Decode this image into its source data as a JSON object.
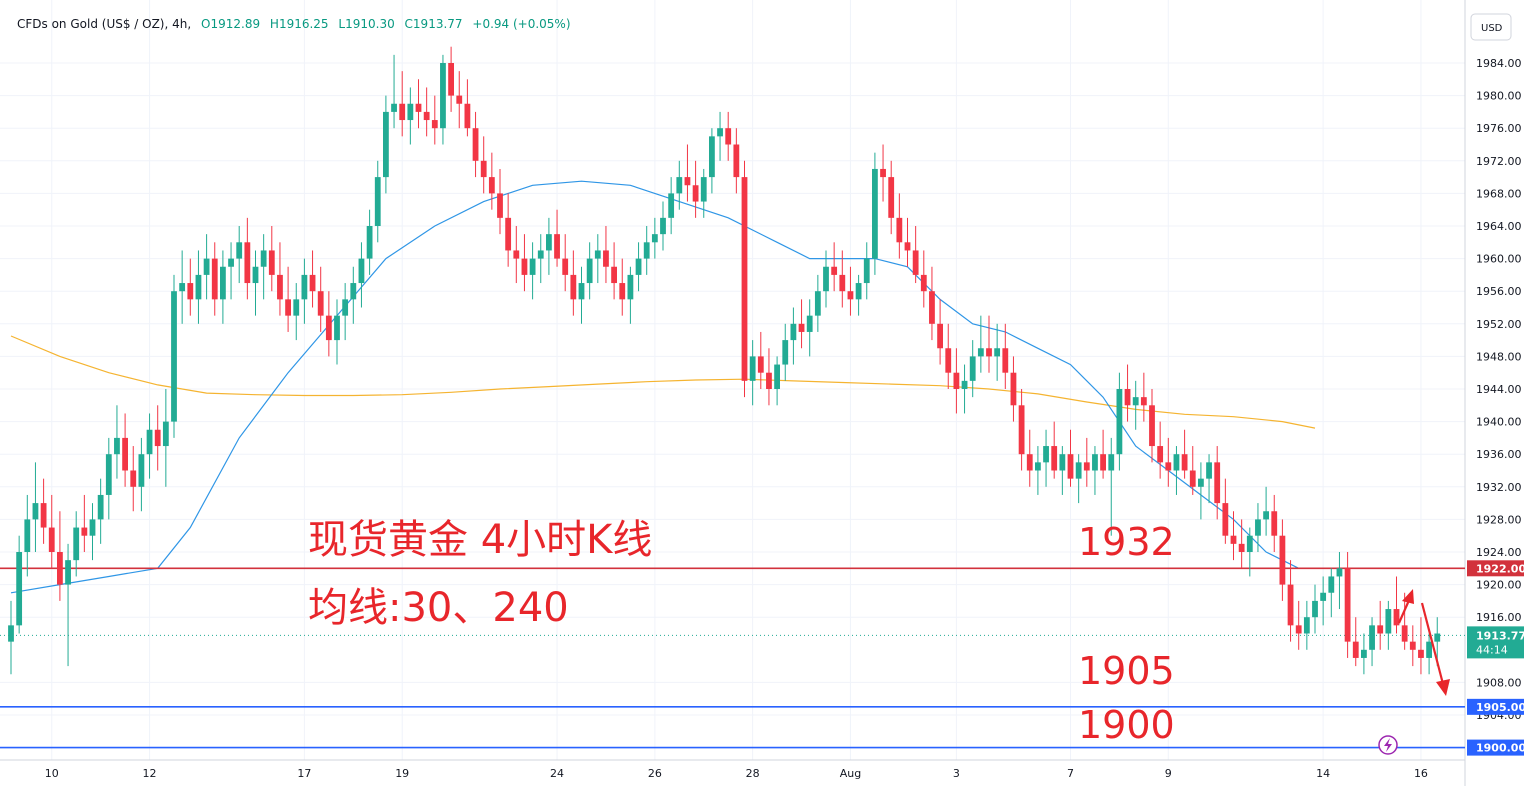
{
  "header": {
    "symbol": "CFDs on Gold (US$ / OZ), 4h,",
    "open": "O1912.89",
    "high": "H1916.25",
    "low": "L1910.30",
    "close": "C1913.77",
    "change": "+0.94 (+0.05%)"
  },
  "currency": "USD",
  "annotations": {
    "title": "现货黄金 4小时K线",
    "ma_note": "均线:30、240",
    "level_1932": "1932",
    "level_1905": "1905",
    "level_1900": "1900"
  },
  "price_tags": {
    "resistance": "1922.00",
    "current": "1913.77",
    "countdown": "44:14",
    "support_1": "1905.00",
    "support_2": "1900.00"
  },
  "colors": {
    "up": "#22ab94",
    "down": "#f23645",
    "ma30": "#2f96e6",
    "ma240": "#f5b431",
    "resistance_line": "#d2323c",
    "support_line": "#2962ff",
    "annotation": "#e8262b"
  },
  "chart_data": {
    "type": "candlestick",
    "timeframe": "4h",
    "ylim": [
      1898,
      1988
    ],
    "y_ticks": [
      "1984.00",
      "1980.00",
      "1976.00",
      "1972.00",
      "1968.00",
      "1964.00",
      "1960.00",
      "1956.00",
      "1952.00",
      "1948.00",
      "1944.00",
      "1940.00",
      "1936.00",
      "1932.00",
      "1928.00",
      "1924.00",
      "1920.00",
      "1916.00",
      "1908.00",
      "1904.00"
    ],
    "x_ticks": [
      {
        "label": "10",
        "index": 5
      },
      {
        "label": "12",
        "index": 17
      },
      {
        "label": "17",
        "index": 36
      },
      {
        "label": "19",
        "index": 48
      },
      {
        "label": "24",
        "index": 67
      },
      {
        "label": "26",
        "index": 79
      },
      {
        "label": "28",
        "index": 91
      },
      {
        "label": "Aug",
        "index": 103
      },
      {
        "label": "3",
        "index": 116
      },
      {
        "label": "7",
        "index": 130
      },
      {
        "label": "9",
        "index": 142
      },
      {
        "label": "14",
        "index": 161
      },
      {
        "label": "16",
        "index": 173
      }
    ],
    "x_count": 175,
    "horizontal_levels": [
      {
        "value": 1922.0,
        "role": "resistance"
      },
      {
        "value": 1905.0,
        "role": "support"
      },
      {
        "value": 1900.0,
        "role": "support"
      }
    ],
    "last_price": 1913.77,
    "candles": [
      [
        1913.0,
        1918.0,
        1909.0,
        1915.0
      ],
      [
        1915.0,
        1926.0,
        1914.0,
        1924.0
      ],
      [
        1924.0,
        1931.0,
        1921.0,
        1928.0
      ],
      [
        1928.0,
        1935.0,
        1924.0,
        1930.0
      ],
      [
        1930.0,
        1933.0,
        1925.0,
        1927.0
      ],
      [
        1927.0,
        1931.0,
        1922.0,
        1924.0
      ],
      [
        1924.0,
        1929.0,
        1918.0,
        1920.0
      ],
      [
        1920.0,
        1925.0,
        1910.0,
        1923.0
      ],
      [
        1923.0,
        1929.0,
        1921.0,
        1927.0
      ],
      [
        1927.0,
        1931.0,
        1924.0,
        1926.0
      ],
      [
        1926.0,
        1930.0,
        1923.0,
        1928.0
      ],
      [
        1928.0,
        1933.0,
        1925.0,
        1931.0
      ],
      [
        1931.0,
        1938.0,
        1928.0,
        1936.0
      ],
      [
        1936.0,
        1942.0,
        1933.0,
        1938.0
      ],
      [
        1938.0,
        1941.0,
        1932.0,
        1934.0
      ],
      [
        1934.0,
        1937.0,
        1929.0,
        1932.0
      ],
      [
        1932.0,
        1938.0,
        1929.0,
        1936.0
      ],
      [
        1936.0,
        1941.0,
        1933.0,
        1939.0
      ],
      [
        1939.0,
        1942.0,
        1934.0,
        1937.0
      ],
      [
        1937.0,
        1944.0,
        1932.0,
        1940.0
      ],
      [
        1940.0,
        1958.0,
        1938.0,
        1956.0
      ],
      [
        1956.0,
        1961.0,
        1952.0,
        1957.0
      ],
      [
        1957.0,
        1960.0,
        1953.0,
        1955.0
      ],
      [
        1955.0,
        1961.0,
        1952.0,
        1958.0
      ],
      [
        1958.0,
        1963.0,
        1955.0,
        1960.0
      ],
      [
        1960.0,
        1962.0,
        1953.0,
        1955.0
      ],
      [
        1955.0,
        1961.0,
        1952.0,
        1959.0
      ],
      [
        1959.0,
        1962.0,
        1955.0,
        1960.0
      ],
      [
        1960.0,
        1964.0,
        1957.0,
        1962.0
      ],
      [
        1962.0,
        1965.0,
        1955.0,
        1957.0
      ],
      [
        1957.0,
        1961.0,
        1953.0,
        1959.0
      ],
      [
        1959.0,
        1963.0,
        1955.0,
        1961.0
      ],
      [
        1961.0,
        1964.0,
        1956.0,
        1958.0
      ],
      [
        1958.0,
        1962.0,
        1953.0,
        1955.0
      ],
      [
        1955.0,
        1959.0,
        1951.0,
        1953.0
      ],
      [
        1953.0,
        1957.0,
        1950.0,
        1955.0
      ],
      [
        1955.0,
        1960.0,
        1952.0,
        1958.0
      ],
      [
        1958.0,
        1961.0,
        1954.0,
        1956.0
      ],
      [
        1956.0,
        1959.0,
        1951.0,
        1953.0
      ],
      [
        1953.0,
        1956.0,
        1948.0,
        1950.0
      ],
      [
        1950.0,
        1955.0,
        1947.0,
        1953.0
      ],
      [
        1953.0,
        1957.0,
        1950.0,
        1955.0
      ],
      [
        1955.0,
        1959.0,
        1952.0,
        1957.0
      ],
      [
        1957.0,
        1962.0,
        1954.0,
        1960.0
      ],
      [
        1960.0,
        1966.0,
        1958.0,
        1964.0
      ],
      [
        1964.0,
        1972.0,
        1962.0,
        1970.0
      ],
      [
        1970.0,
        1980.0,
        1968.0,
        1978.0
      ],
      [
        1978.0,
        1985.0,
        1976.0,
        1979.0
      ],
      [
        1979.0,
        1983.0,
        1975.0,
        1977.0
      ],
      [
        1977.0,
        1981.0,
        1974.0,
        1979.0
      ],
      [
        1979.0,
        1982.0,
        1976.0,
        1978.0
      ],
      [
        1978.0,
        1981.0,
        1975.0,
        1977.0
      ],
      [
        1977.0,
        1980.0,
        1974.0,
        1976.0
      ],
      [
        1976.0,
        1985.0,
        1974.0,
        1984.0
      ],
      [
        1984.0,
        1986.0,
        1978.0,
        1980.0
      ],
      [
        1980.0,
        1983.0,
        1976.0,
        1979.0
      ],
      [
        1979.0,
        1982.0,
        1975.0,
        1976.0
      ],
      [
        1976.0,
        1978.0,
        1970.0,
        1972.0
      ],
      [
        1972.0,
        1975.0,
        1968.0,
        1970.0
      ],
      [
        1970.0,
        1973.0,
        1966.0,
        1968.0
      ],
      [
        1968.0,
        1971.0,
        1963.0,
        1965.0
      ],
      [
        1965.0,
        1968.0,
        1959.0,
        1961.0
      ],
      [
        1961.0,
        1964.0,
        1957.0,
        1960.0
      ],
      [
        1960.0,
        1963.0,
        1956.0,
        1958.0
      ],
      [
        1958.0,
        1962.0,
        1955.0,
        1960.0
      ],
      [
        1960.0,
        1963.0,
        1957.0,
        1961.0
      ],
      [
        1961.0,
        1965.0,
        1958.0,
        1963.0
      ],
      [
        1963.0,
        1966.0,
        1959.0,
        1960.0
      ],
      [
        1960.0,
        1963.0,
        1956.0,
        1958.0
      ],
      [
        1958.0,
        1961.0,
        1953.0,
        1955.0
      ],
      [
        1955.0,
        1959.0,
        1952.0,
        1957.0
      ],
      [
        1957.0,
        1962.0,
        1955.0,
        1960.0
      ],
      [
        1960.0,
        1963.0,
        1957.0,
        1961.0
      ],
      [
        1961.0,
        1964.0,
        1957.0,
        1959.0
      ],
      [
        1959.0,
        1962.0,
        1955.0,
        1957.0
      ],
      [
        1957.0,
        1960.0,
        1953.0,
        1955.0
      ],
      [
        1955.0,
        1959.0,
        1952.0,
        1958.0
      ],
      [
        1958.0,
        1962.0,
        1956.0,
        1960.0
      ],
      [
        1960.0,
        1964.0,
        1958.0,
        1962.0
      ],
      [
        1962.0,
        1965.0,
        1960.0,
        1963.0
      ],
      [
        1963.0,
        1967.0,
        1961.0,
        1965.0
      ],
      [
        1965.0,
        1970.0,
        1963.0,
        1968.0
      ],
      [
        1968.0,
        1972.0,
        1966.0,
        1970.0
      ],
      [
        1970.0,
        1974.0,
        1967.0,
        1969.0
      ],
      [
        1969.0,
        1972.0,
        1965.0,
        1967.0
      ],
      [
        1967.0,
        1971.0,
        1965.0,
        1970.0
      ],
      [
        1970.0,
        1976.0,
        1968.0,
        1975.0
      ],
      [
        1975.0,
        1978.0,
        1972.0,
        1976.0
      ],
      [
        1976.0,
        1978.0,
        1972.0,
        1974.0
      ],
      [
        1974.0,
        1976.0,
        1968.0,
        1970.0
      ],
      [
        1970.0,
        1972.0,
        1943.0,
        1945.0
      ],
      [
        1945.0,
        1950.0,
        1942.0,
        1948.0
      ],
      [
        1948.0,
        1951.0,
        1944.0,
        1946.0
      ],
      [
        1946.0,
        1949.0,
        1942.0,
        1944.0
      ],
      [
        1944.0,
        1948.0,
        1942.0,
        1947.0
      ],
      [
        1947.0,
        1952.0,
        1945.0,
        1950.0
      ],
      [
        1950.0,
        1954.0,
        1947.0,
        1952.0
      ],
      [
        1952.0,
        1955.0,
        1949.0,
        1951.0
      ],
      [
        1951.0,
        1955.0,
        1948.0,
        1953.0
      ],
      [
        1953.0,
        1958.0,
        1951.0,
        1956.0
      ],
      [
        1956.0,
        1961.0,
        1954.0,
        1959.0
      ],
      [
        1959.0,
        1962.0,
        1956.0,
        1958.0
      ],
      [
        1958.0,
        1961.0,
        1954.0,
        1956.0
      ],
      [
        1956.0,
        1959.0,
        1953.0,
        1955.0
      ],
      [
        1955.0,
        1958.0,
        1953.0,
        1957.0
      ],
      [
        1957.0,
        1962.0,
        1955.0,
        1960.0
      ],
      [
        1960.0,
        1973.0,
        1958.0,
        1971.0
      ],
      [
        1971.0,
        1974.0,
        1967.0,
        1970.0
      ],
      [
        1970.0,
        1972.0,
        1963.0,
        1965.0
      ],
      [
        1965.0,
        1968.0,
        1960.0,
        1962.0
      ],
      [
        1962.0,
        1965.0,
        1959.0,
        1961.0
      ],
      [
        1961.0,
        1964.0,
        1957.0,
        1958.0
      ],
      [
        1958.0,
        1961.0,
        1954.0,
        1956.0
      ],
      [
        1956.0,
        1959.0,
        1950.0,
        1952.0
      ],
      [
        1952.0,
        1955.0,
        1947.0,
        1949.0
      ],
      [
        1949.0,
        1952.0,
        1944.0,
        1946.0
      ],
      [
        1946.0,
        1949.0,
        1941.0,
        1944.0
      ],
      [
        1944.0,
        1947.0,
        1941.0,
        1945.0
      ],
      [
        1945.0,
        1950.0,
        1943.0,
        1948.0
      ],
      [
        1948.0,
        1953.0,
        1946.0,
        1949.0
      ],
      [
        1949.0,
        1953.0,
        1946.0,
        1948.0
      ],
      [
        1948.0,
        1952.0,
        1945.0,
        1949.0
      ],
      [
        1949.0,
        1952.0,
        1944.0,
        1946.0
      ],
      [
        1946.0,
        1948.0,
        1940.0,
        1942.0
      ],
      [
        1942.0,
        1944.0,
        1934.0,
        1936.0
      ],
      [
        1936.0,
        1939.0,
        1932.0,
        1934.0
      ],
      [
        1934.0,
        1937.0,
        1931.0,
        1935.0
      ],
      [
        1935.0,
        1939.0,
        1932.0,
        1937.0
      ],
      [
        1937.0,
        1940.0,
        1933.0,
        1934.0
      ],
      [
        1934.0,
        1937.0,
        1931.0,
        1936.0
      ],
      [
        1936.0,
        1939.0,
        1932.0,
        1933.0
      ],
      [
        1933.0,
        1936.0,
        1930.0,
        1935.0
      ],
      [
        1935.0,
        1938.0,
        1932.0,
        1934.0
      ],
      [
        1934.0,
        1937.0,
        1931.0,
        1936.0
      ],
      [
        1936.0,
        1939.0,
        1933.0,
        1934.0
      ],
      [
        1934.0,
        1938.0,
        1926.0,
        1936.0
      ],
      [
        1936.0,
        1946.0,
        1934.0,
        1944.0
      ],
      [
        1944.0,
        1947.0,
        1940.0,
        1942.0
      ],
      [
        1942.0,
        1945.0,
        1939.0,
        1943.0
      ],
      [
        1943.0,
        1946.0,
        1940.0,
        1942.0
      ],
      [
        1942.0,
        1944.0,
        1935.0,
        1937.0
      ],
      [
        1937.0,
        1940.0,
        1933.0,
        1935.0
      ],
      [
        1935.0,
        1938.0,
        1932.0,
        1934.0
      ],
      [
        1934.0,
        1937.0,
        1931.0,
        1936.0
      ],
      [
        1936.0,
        1939.0,
        1933.0,
        1934.0
      ],
      [
        1934.0,
        1937.0,
        1931.0,
        1932.0
      ],
      [
        1932.0,
        1935.0,
        1928.0,
        1933.0
      ],
      [
        1933.0,
        1936.0,
        1930.0,
        1935.0
      ],
      [
        1935.0,
        1937.0,
        1928.0,
        1930.0
      ],
      [
        1930.0,
        1933.0,
        1925.0,
        1926.0
      ],
      [
        1926.0,
        1929.0,
        1923.0,
        1925.0
      ],
      [
        1925.0,
        1928.0,
        1922.0,
        1924.0
      ],
      [
        1924.0,
        1927.0,
        1921.0,
        1926.0
      ],
      [
        1926.0,
        1930.0,
        1924.0,
        1928.0
      ],
      [
        1928.0,
        1932.0,
        1926.0,
        1929.0
      ],
      [
        1929.0,
        1931.0,
        1924.0,
        1926.0
      ],
      [
        1926.0,
        1928.0,
        1918.0,
        1920.0
      ],
      [
        1920.0,
        1923.0,
        1913.0,
        1915.0
      ],
      [
        1915.0,
        1918.0,
        1912.0,
        1914.0
      ],
      [
        1914.0,
        1918.0,
        1912.0,
        1916.0
      ],
      [
        1916.0,
        1920.0,
        1914.0,
        1918.0
      ],
      [
        1918.0,
        1921.0,
        1915.0,
        1919.0
      ],
      [
        1919.0,
        1922.0,
        1916.0,
        1921.0
      ],
      [
        1921.0,
        1924.0,
        1917.0,
        1922.0
      ],
      [
        1922.0,
        1924.0,
        1911.0,
        1913.0
      ],
      [
        1913.0,
        1916.0,
        1910.0,
        1911.0
      ],
      [
        1911.0,
        1914.0,
        1909.0,
        1912.0
      ],
      [
        1912.0,
        1916.0,
        1910.0,
        1915.0
      ],
      [
        1915.0,
        1918.0,
        1912.0,
        1914.0
      ],
      [
        1914.0,
        1918.0,
        1912.0,
        1917.0
      ],
      [
        1917.0,
        1921.0,
        1914.0,
        1915.0
      ],
      [
        1915.0,
        1919.0,
        1912.0,
        1913.0
      ],
      [
        1913.0,
        1915.0,
        1910.0,
        1912.0
      ],
      [
        1912.0,
        1916.0,
        1909.0,
        1911.0
      ],
      [
        1911.0,
        1914.0,
        1909.0,
        1913.0
      ],
      [
        1913.0,
        1916.0,
        1910.0,
        1914.0
      ]
    ],
    "ma30": [
      [
        0,
        1919.0
      ],
      [
        6,
        1920.0
      ],
      [
        12,
        1921.0
      ],
      [
        18,
        1922.0
      ],
      [
        22,
        1927.0
      ],
      [
        28,
        1938.0
      ],
      [
        34,
        1946.0
      ],
      [
        40,
        1953.0
      ],
      [
        46,
        1960.0
      ],
      [
        52,
        1964.0
      ],
      [
        58,
        1967.0
      ],
      [
        64,
        1969.0
      ],
      [
        70,
        1969.5
      ],
      [
        76,
        1969.0
      ],
      [
        82,
        1967.0
      ],
      [
        88,
        1965.0
      ],
      [
        94,
        1962.0
      ],
      [
        98,
        1960.0
      ],
      [
        102,
        1960.0
      ],
      [
        106,
        1960.0
      ],
      [
        110,
        1959.0
      ],
      [
        114,
        1955.0
      ],
      [
        118,
        1952.0
      ],
      [
        122,
        1951.0
      ],
      [
        126,
        1949.0
      ],
      [
        130,
        1947.0
      ],
      [
        134,
        1943.0
      ],
      [
        138,
        1937.0
      ],
      [
        142,
        1934.0
      ],
      [
        146,
        1931.0
      ],
      [
        150,
        1928.0
      ],
      [
        154,
        1924.0
      ],
      [
        158,
        1922.0
      ]
    ],
    "ma240": [
      [
        0,
        1950.5
      ],
      [
        6,
        1948.0
      ],
      [
        12,
        1946.0
      ],
      [
        18,
        1944.5
      ],
      [
        24,
        1943.5
      ],
      [
        30,
        1943.3
      ],
      [
        36,
        1943.2
      ],
      [
        42,
        1943.2
      ],
      [
        48,
        1943.3
      ],
      [
        54,
        1943.6
      ],
      [
        60,
        1944.0
      ],
      [
        66,
        1944.3
      ],
      [
        72,
        1944.6
      ],
      [
        78,
        1944.9
      ],
      [
        84,
        1945.1
      ],
      [
        90,
        1945.2
      ],
      [
        96,
        1945.0
      ],
      [
        102,
        1944.8
      ],
      [
        108,
        1944.6
      ],
      [
        114,
        1944.4
      ],
      [
        120,
        1944.0
      ],
      [
        126,
        1943.4
      ],
      [
        132,
        1942.4
      ],
      [
        138,
        1941.5
      ],
      [
        144,
        1940.9
      ],
      [
        150,
        1940.6
      ],
      [
        156,
        1940.0
      ],
      [
        160,
        1939.2
      ]
    ]
  }
}
